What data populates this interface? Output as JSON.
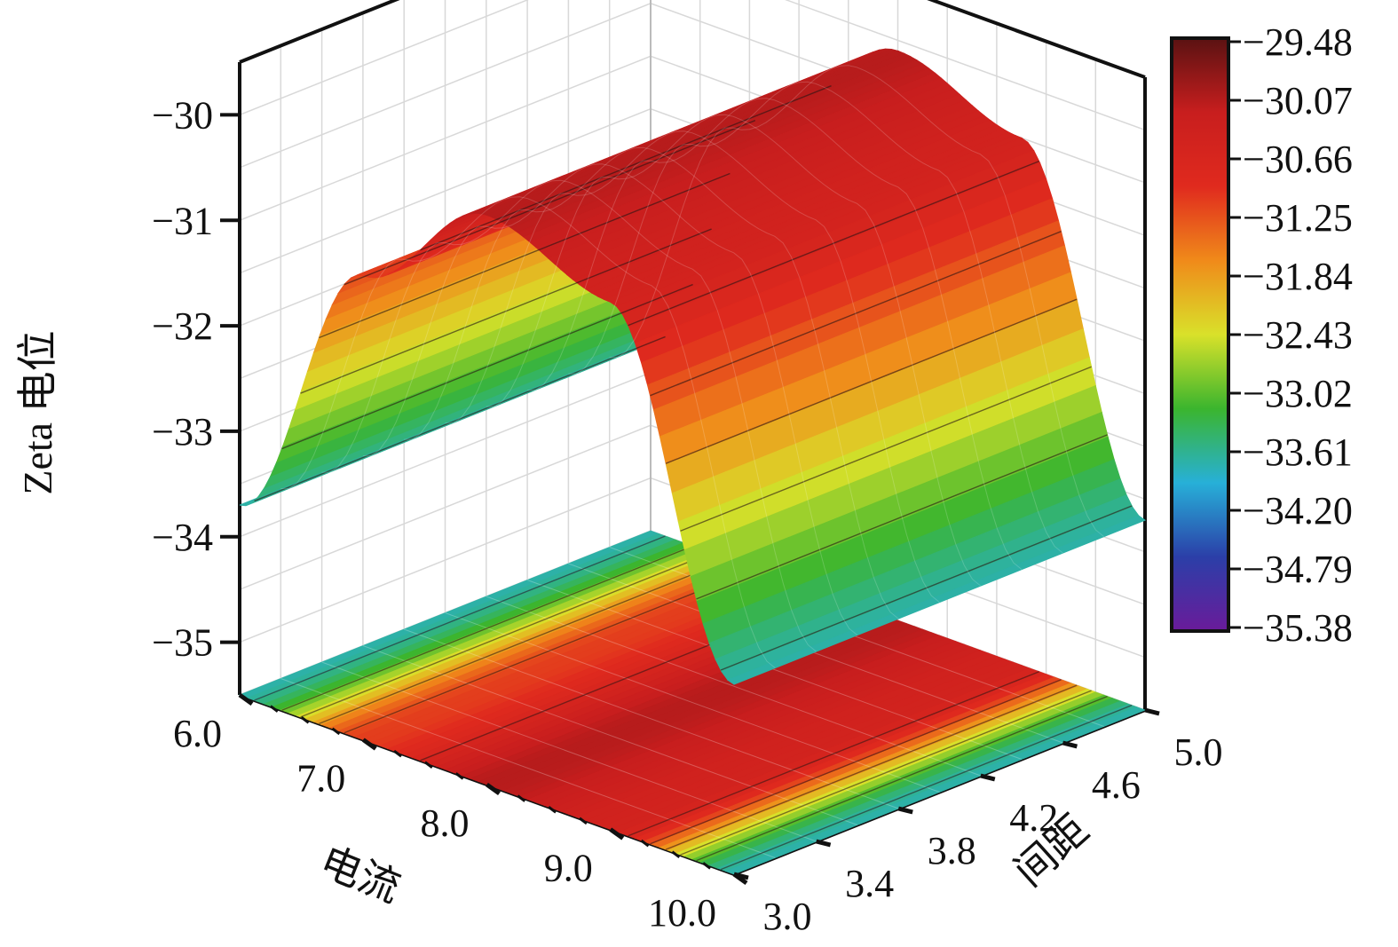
{
  "chart_data": {
    "type": "surface",
    "zlabel": "Zeta 电位",
    "xlabel": "电流",
    "ylabel": "间距",
    "x_ticks": [
      "6.0",
      "7.0",
      "8.0",
      "9.0",
      "10.0"
    ],
    "y_ticks": [
      "3.0",
      "3.4",
      "3.8",
      "4.2",
      "4.6",
      "5.0"
    ],
    "z_ticks": [
      "−30",
      "−31",
      "−32",
      "−33",
      "−34",
      "−35"
    ],
    "colorbar_ticks": [
      "−29.48",
      "−30.07",
      "−30.66",
      "−31.25",
      "−31.84",
      "−32.43",
      "−33.02",
      "−33.61",
      "−34.20",
      "−34.79",
      "−35.38"
    ],
    "colorbar_range": [
      -35.38,
      -29.48
    ],
    "xlim": [
      6.0,
      10.0
    ],
    "ylim": [
      3.0,
      5.0
    ],
    "zlim": [
      -35.5,
      -29.5
    ],
    "colormap": [
      "#6a1b9a",
      "#2b3fa8",
      "#27b0d8",
      "#3bb52e",
      "#d9e12a",
      "#f08a1a",
      "#e02a1e",
      "#c81e1e",
      "#5a1212"
    ],
    "surface_profile": {
      "x": [
        6.0,
        7.0,
        8.0,
        9.0,
        10.0
      ],
      "z": [
        -33.7,
        -31.1,
        -30.1,
        -30.5,
        -33.7
      ]
    },
    "grid": true,
    "projection": true
  }
}
